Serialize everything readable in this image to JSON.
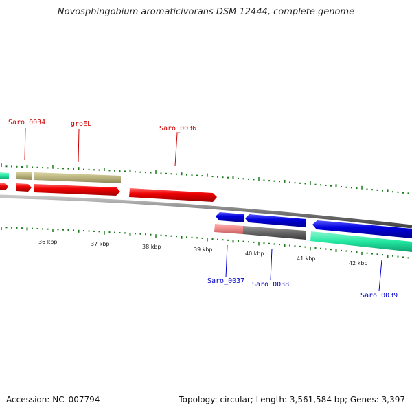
{
  "title": "Novosphingobium aromaticivorans DSM 12444, complete genome",
  "accession": "Accession: NC_007794",
  "summary": "Topology: circular; Length: 3,561,584 bp; Genes: 3,397",
  "gene_labels": {
    "saro_0034": "Saro_0034",
    "groel": "groEL",
    "saro_0036": "Saro_0036",
    "saro_0037": "Saro_0037",
    "saro_0038": "Saro_0038",
    "saro_0039": "Saro_0039"
  },
  "scale_labels": [
    "36 kbp",
    "37 kbp",
    "38 kbp",
    "39 kbp",
    "40 kbp",
    "41 kbp",
    "42 kbp"
  ],
  "colors": {
    "forward_gene": "#ee0000",
    "reverse_gene": "#0000dd",
    "rna_tan": "#b8b27e",
    "teal": "#22e8a0",
    "gray_gene": "#666666",
    "pink_gene": "#ee8888",
    "tick": "#1a7a1a",
    "backbone": "#7a7a7a"
  }
}
